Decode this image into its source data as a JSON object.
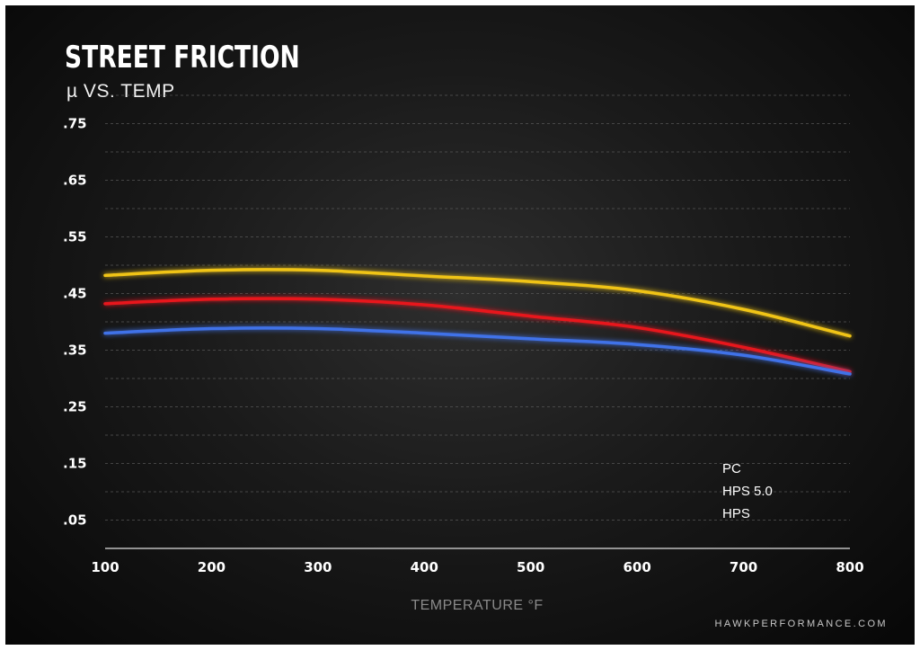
{
  "page": {
    "title": "STREET FRICTION",
    "subtitle": "µ VS. TEMP",
    "source": "HAWKPERFORMANCE.COM"
  },
  "chart_data": {
    "type": "line",
    "title": "STREET FRICTION",
    "subtitle": "µ VS. TEMP",
    "xlabel": "TEMPERATURE °F",
    "ylabel": "",
    "x": [
      100,
      200,
      300,
      400,
      500,
      600,
      700,
      800
    ],
    "x_tick_labels": [
      "100",
      "200",
      "300",
      "400",
      "500",
      "600",
      "700",
      "800"
    ],
    "xlim": [
      100,
      800
    ],
    "ylim": [
      0,
      0.8
    ],
    "y_ticks": [
      0.05,
      0.15,
      0.25,
      0.35,
      0.45,
      0.55,
      0.65,
      0.75
    ],
    "y_tick_labels": [
      ".05",
      ".15",
      ".25",
      ".35",
      ".45",
      ".55",
      ".65",
      ".75"
    ],
    "grid": true,
    "legend_position": "bottom-right",
    "series": [
      {
        "name": "PC",
        "color": "#f0c419",
        "values": [
          0.482,
          0.491,
          0.491,
          0.481,
          0.471,
          0.455,
          0.422,
          0.375
        ]
      },
      {
        "name": "HPS 5.0",
        "color": "#e8161f",
        "values": [
          0.432,
          0.44,
          0.44,
          0.43,
          0.41,
          0.39,
          0.355,
          0.312
        ]
      },
      {
        "name": "HPS",
        "color": "#3f72e8",
        "values": [
          0.38,
          0.388,
          0.388,
          0.38,
          0.37,
          0.36,
          0.341,
          0.308
        ]
      }
    ]
  }
}
